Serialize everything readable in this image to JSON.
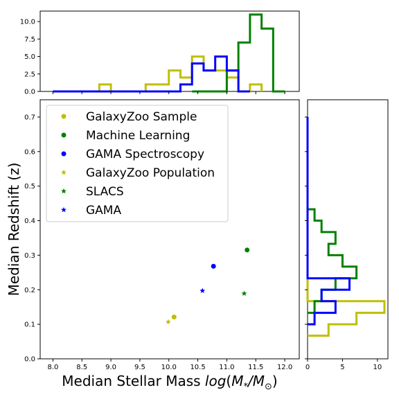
{
  "chart_data": [
    {
      "type": "scatter",
      "panel": "main",
      "xlabel": "Median Stellar Mass log(M*/M⊙)",
      "ylabel": "Median Redshift (z)",
      "xlim": [
        7.78,
        12.25
      ],
      "ylim": [
        0.0,
        0.75
      ],
      "xticks": [
        "8.0",
        "8.5",
        "9.0",
        "9.5",
        "10.0",
        "10.5",
        "11.0",
        "11.5",
        "12.0"
      ],
      "yticks": [
        "0.0",
        "0.1",
        "0.2",
        "0.3",
        "0.4",
        "0.5",
        "0.6",
        "0.7"
      ],
      "legend_position": "top-left",
      "series": [
        {
          "name": "GalaxyZoo Sample",
          "marker": "circle",
          "color": "#bfbf00",
          "x": 10.09,
          "y": 0.121
        },
        {
          "name": "Machine Learning",
          "marker": "circle",
          "color": "#008000",
          "x": 11.35,
          "y": 0.315
        },
        {
          "name": "GAMA Spectroscopy",
          "marker": "circle",
          "color": "#0000ff",
          "x": 10.77,
          "y": 0.268
        },
        {
          "name": "GalaxyZoo Population",
          "marker": "star",
          "color": "#bfbf00",
          "x": 9.99,
          "y": 0.107
        },
        {
          "name": "SLACS",
          "marker": "star",
          "color": "#008000",
          "x": 11.3,
          "y": 0.189
        },
        {
          "name": "GAMA",
          "marker": "star",
          "color": "#0000ff",
          "x": 10.58,
          "y": 0.197
        }
      ]
    },
    {
      "type": "histogram",
      "panel": "top",
      "xlim": [
        7.78,
        12.25
      ],
      "ylim": [
        0,
        11.5
      ],
      "yticks": [
        "0.0",
        "2.5",
        "5.0",
        "7.5",
        "10.0"
      ],
      "series": [
        {
          "color": "#bfbf00",
          "edges": [
            8.0,
            8.8,
            9.0,
            9.6,
            10.0,
            10.2,
            10.4,
            10.6,
            11.0,
            11.2,
            11.4,
            11.6
          ],
          "counts": [
            0,
            1,
            0,
            1,
            3,
            2,
            5,
            3,
            2,
            0,
            1
          ]
        },
        {
          "color": "#008000",
          "edges": [
            10.4,
            11.0,
            11.2,
            11.4,
            11.6,
            11.8,
            12.0
          ],
          "counts": [
            0,
            3,
            7,
            11,
            9,
            0
          ]
        },
        {
          "color": "#0000ff",
          "edges": [
            8.0,
            10.2,
            10.4,
            10.6,
            10.8,
            11.0,
            11.2,
            11.4
          ],
          "counts": [
            0,
            1,
            4,
            3,
            5,
            3,
            0
          ]
        }
      ]
    },
    {
      "type": "histogram",
      "panel": "right",
      "orientation": "horizontal",
      "xlim": [
        0,
        11.5
      ],
      "ylim": [
        0.0,
        0.75
      ],
      "xticks": [
        "0",
        "5",
        "10"
      ],
      "series": [
        {
          "color": "#bfbf00",
          "edges": [
            0.067,
            0.1,
            0.133,
            0.167,
            0.67
          ],
          "counts": [
            3,
            7,
            11,
            0
          ]
        },
        {
          "color": "#008000",
          "edges": [
            0.133,
            0.167,
            0.2,
            0.233,
            0.267,
            0.3,
            0.333,
            0.367,
            0.4,
            0.433
          ],
          "counts": [
            1,
            2,
            4,
            7,
            5,
            3,
            4,
            2,
            1
          ]
        },
        {
          "color": "#0000ff",
          "edges": [
            0.1,
            0.133,
            0.167,
            0.2,
            0.233,
            0.267,
            0.3,
            0.367,
            0.4,
            0.467,
            0.5,
            0.7
          ],
          "counts": [
            1,
            4,
            2,
            6,
            0,
            0,
            0,
            0,
            0,
            0,
            0
          ]
        }
      ]
    }
  ]
}
